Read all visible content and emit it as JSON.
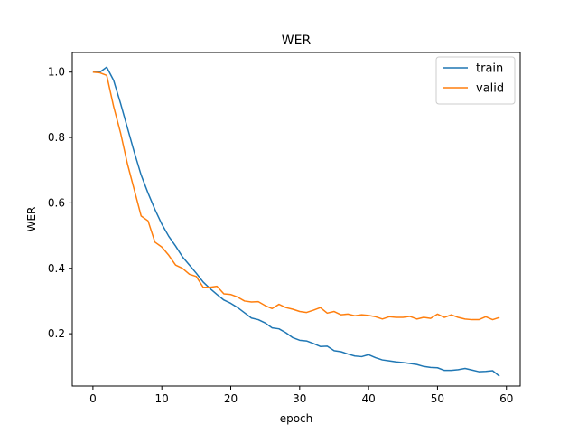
{
  "chart_data": {
    "type": "line",
    "title": "WER",
    "xlabel": "epoch",
    "ylabel": "WER",
    "xlim": [
      -3,
      62
    ],
    "ylim": [
      0.04,
      1.06
    ],
    "xticks": [
      "0",
      "10",
      "20",
      "30",
      "40",
      "50",
      "60"
    ],
    "yticks": [
      "0.2",
      "0.4",
      "0.6",
      "0.8",
      "1.0"
    ],
    "grid": false,
    "legend_position": "top-right",
    "x": [
      0,
      1,
      2,
      3,
      4,
      5,
      6,
      7,
      8,
      9,
      10,
      11,
      12,
      13,
      14,
      15,
      16,
      17,
      18,
      19,
      20,
      21,
      22,
      23,
      24,
      25,
      26,
      27,
      28,
      29,
      30,
      31,
      32,
      33,
      34,
      35,
      36,
      37,
      38,
      39,
      40,
      41,
      42,
      43,
      44,
      45,
      46,
      47,
      48,
      49,
      50,
      51,
      52,
      53,
      54,
      55,
      56,
      57,
      58,
      59
    ],
    "series": [
      {
        "name": "train",
        "color": "#1f77b4",
        "values": [
          1.0,
          1.0,
          1.015,
          0.975,
          0.905,
          0.83,
          0.755,
          0.685,
          0.63,
          0.58,
          0.535,
          0.498,
          0.468,
          0.435,
          0.41,
          0.385,
          0.358,
          0.338,
          0.32,
          0.303,
          0.293,
          0.28,
          0.264,
          0.248,
          0.243,
          0.233,
          0.218,
          0.215,
          0.203,
          0.188,
          0.18,
          0.178,
          0.17,
          0.161,
          0.162,
          0.148,
          0.145,
          0.138,
          0.132,
          0.13,
          0.136,
          0.127,
          0.12,
          0.117,
          0.114,
          0.112,
          0.109,
          0.106,
          0.1,
          0.097,
          0.096,
          0.088,
          0.088,
          0.09,
          0.094,
          0.089,
          0.084,
          0.085,
          0.087,
          0.07
        ]
      },
      {
        "name": "valid",
        "color": "#ff7f0e",
        "values": [
          1.0,
          0.998,
          0.99,
          0.895,
          0.815,
          0.72,
          0.64,
          0.56,
          0.545,
          0.48,
          0.465,
          0.44,
          0.41,
          0.4,
          0.382,
          0.375,
          0.342,
          0.342,
          0.345,
          0.322,
          0.32,
          0.312,
          0.3,
          0.297,
          0.298,
          0.286,
          0.277,
          0.29,
          0.28,
          0.275,
          0.268,
          0.265,
          0.272,
          0.28,
          0.263,
          0.268,
          0.258,
          0.26,
          0.255,
          0.258,
          0.256,
          0.252,
          0.245,
          0.252,
          0.25,
          0.25,
          0.253,
          0.245,
          0.25,
          0.247,
          0.26,
          0.25,
          0.258,
          0.25,
          0.245,
          0.243,
          0.243,
          0.252,
          0.243,
          0.25
        ]
      }
    ]
  }
}
